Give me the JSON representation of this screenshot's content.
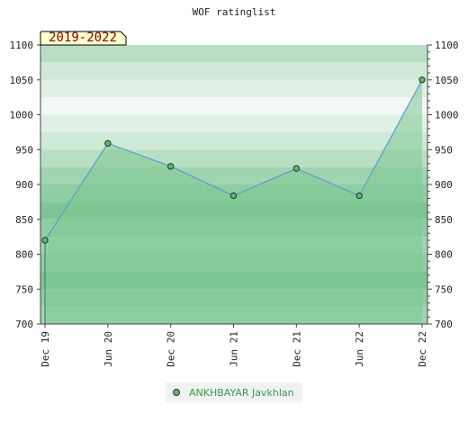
{
  "chart_data": {
    "type": "area",
    "title": "WOF ratinglist",
    "badge": "2019-2022",
    "categories": [
      "Dec 19",
      "Jun 20",
      "Dec 20",
      "Jun 21",
      "Dec 21",
      "Jun 22",
      "Dec 22"
    ],
    "series": [
      {
        "name": "ANKHBAYAR Javkhlan",
        "values": [
          820,
          959,
          926,
          884,
          923,
          884,
          1050
        ]
      }
    ],
    "ylim": [
      700,
      1100
    ],
    "yticks": [
      700,
      750,
      800,
      850,
      900,
      950,
      1000,
      1050,
      1100
    ],
    "xlabel": "",
    "ylabel": "",
    "legend_position": "bottom",
    "grid": true
  },
  "colors": {
    "band_dark": "#7dc594",
    "band_light": "#f2f8f3",
    "line": "#5b9bd5",
    "fill": "#7ec88f",
    "marker": "#5cb56e",
    "legend_text": "#3a9a4a",
    "badge_bg": "#ffffcc",
    "badge_text": "#8b0000"
  }
}
